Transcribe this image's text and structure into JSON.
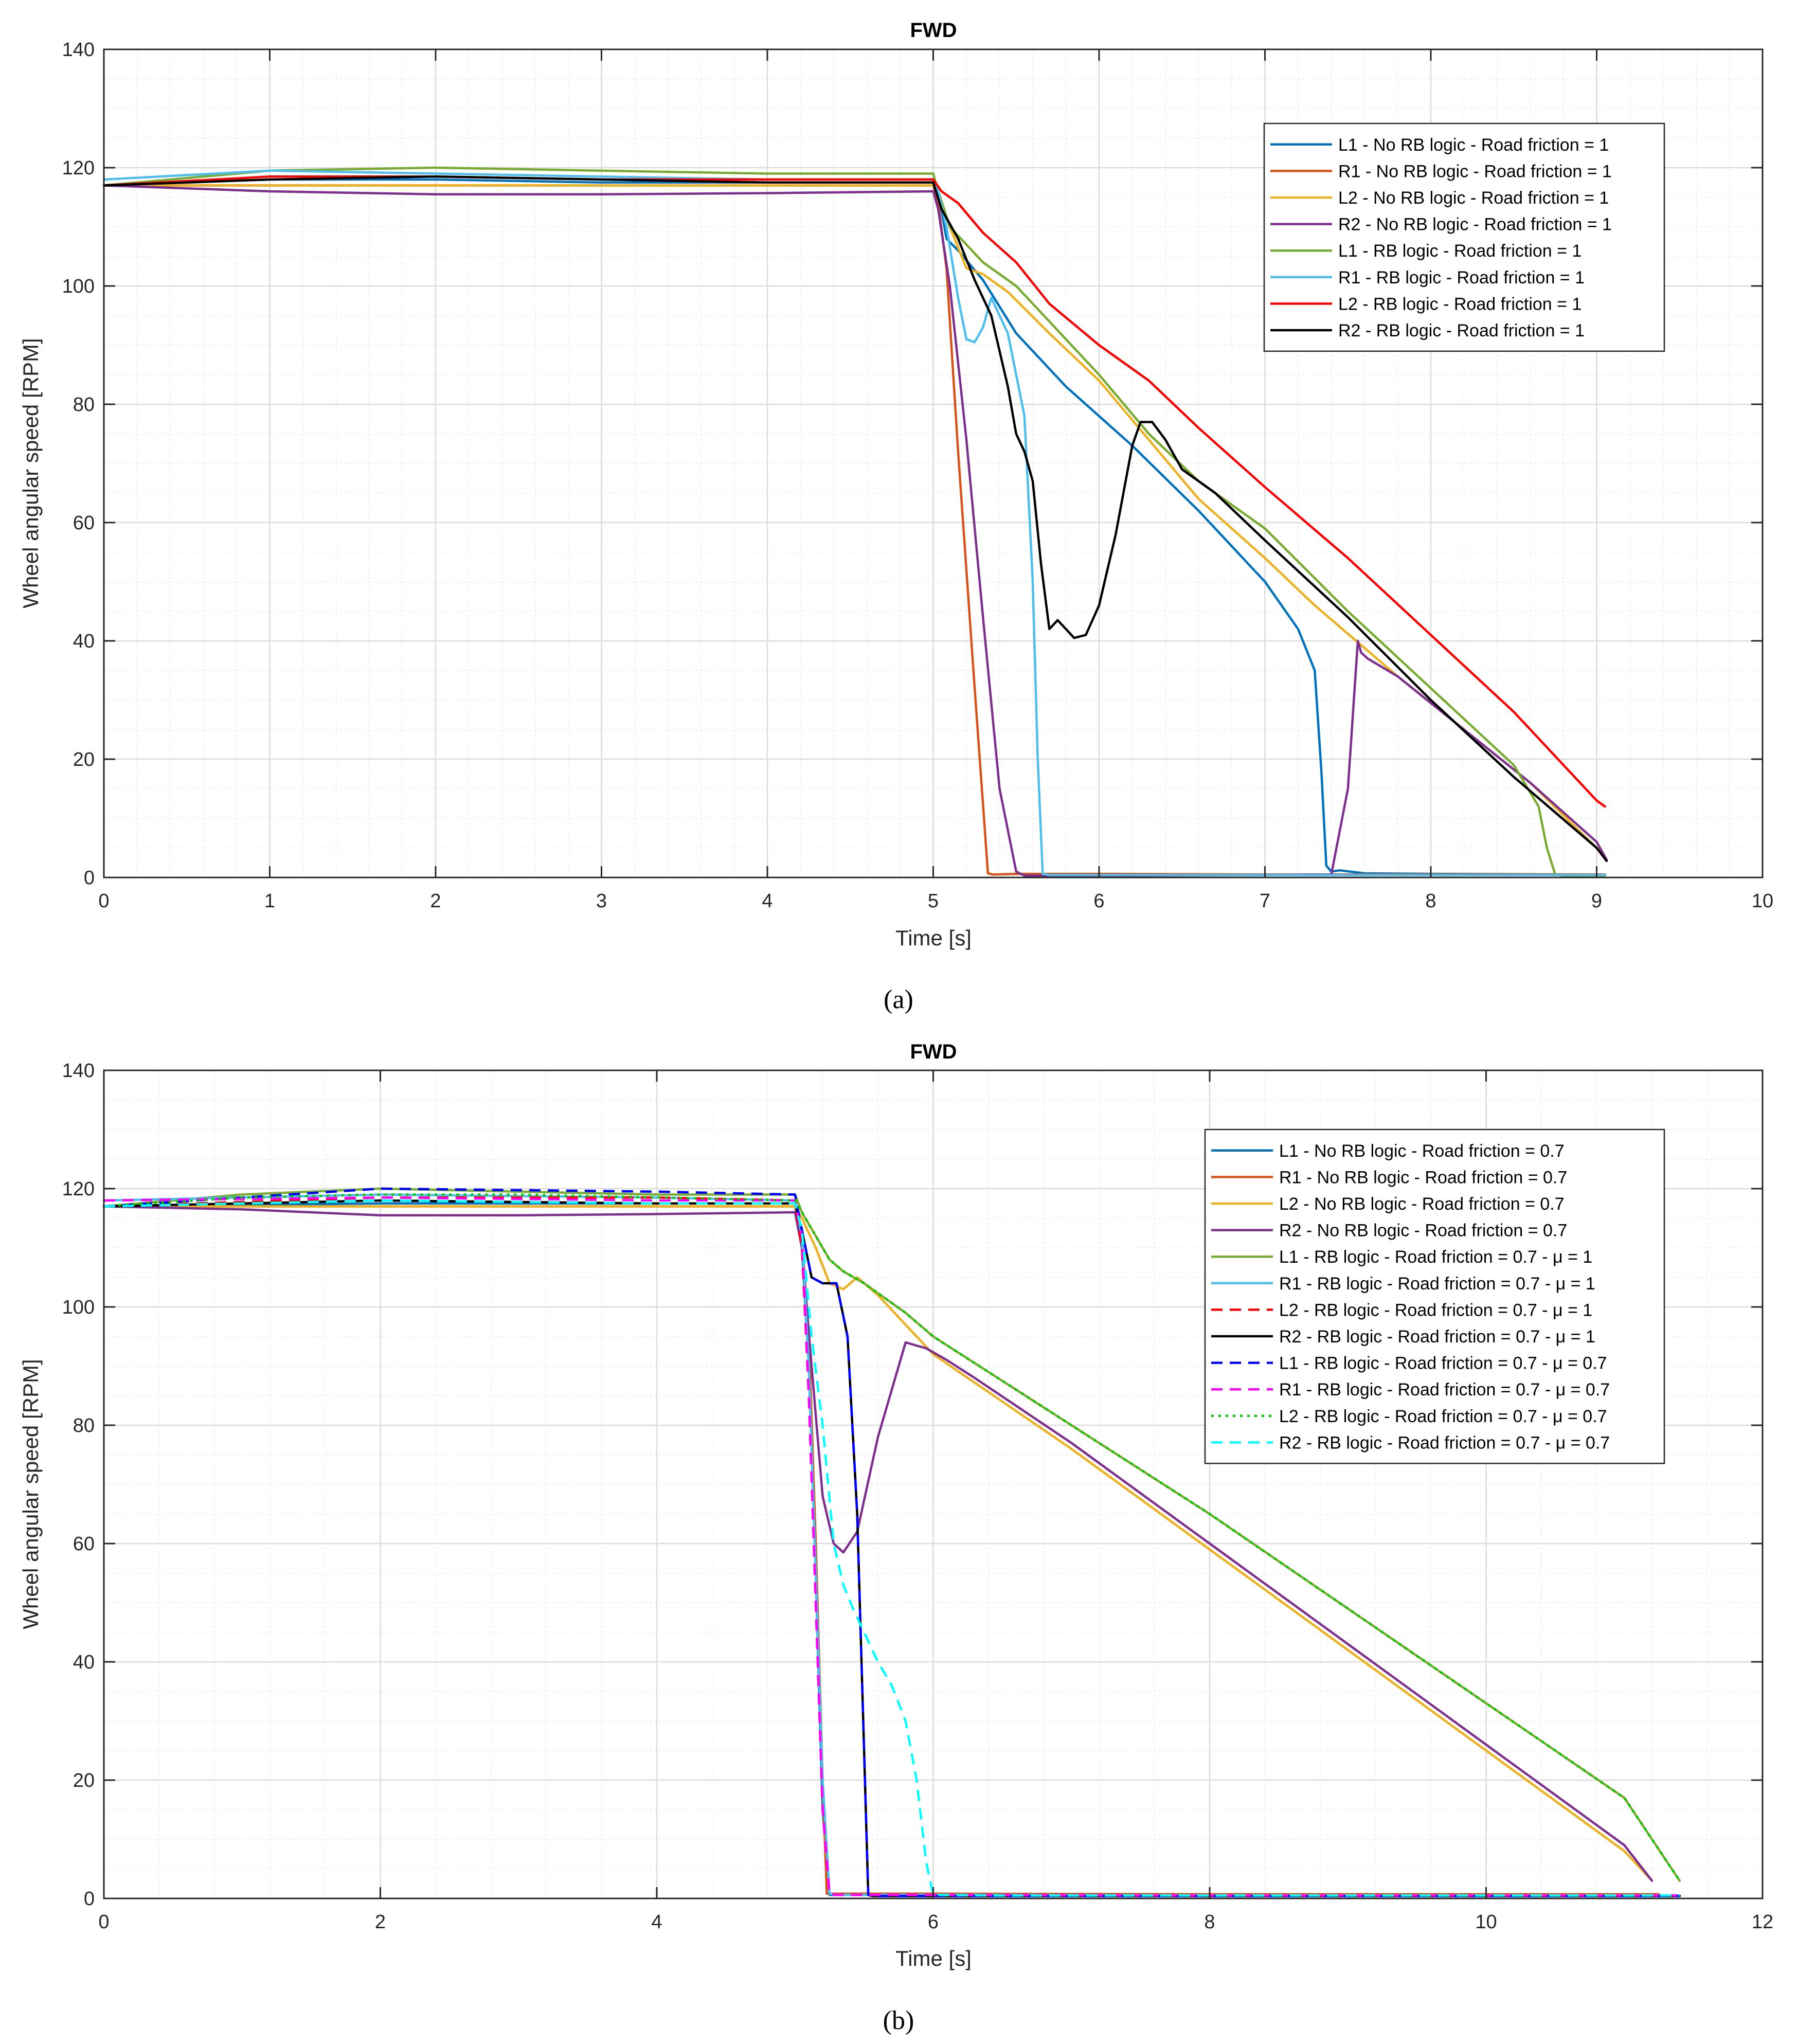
{
  "captions": {
    "a": "(a)",
    "b": "(b)"
  },
  "chart_data": [
    {
      "id": "a",
      "type": "line",
      "title": "FWD",
      "xlabel": "Time [s]",
      "ylabel": "Wheel angular speed [RPM]",
      "xlim": [
        0,
        10
      ],
      "ylim": [
        0,
        140
      ],
      "xticks": [
        0,
        1,
        2,
        3,
        4,
        5,
        6,
        7,
        8,
        9,
        10
      ],
      "yticks": [
        0,
        20,
        40,
        60,
        80,
        100,
        120,
        140
      ],
      "grid": true,
      "legend_location": "top-right",
      "series": [
        {
          "name": "L1 - No RB logic - Road friction = 1",
          "color": "#0072BD",
          "dash": "solid",
          "x": [
            0,
            1,
            2,
            3,
            4,
            5,
            5.03,
            5.08,
            5.15,
            5.3,
            5.5,
            5.8,
            6.2,
            6.6,
            7,
            7.2,
            7.3,
            7.34,
            7.37,
            7.4,
            7.45,
            7.6,
            8,
            9,
            9.05
          ],
          "y": [
            117,
            118,
            118,
            117.5,
            117.5,
            117.5,
            116,
            108,
            106,
            101,
            92,
            83,
            73,
            62,
            50,
            42,
            35,
            18,
            2,
            1,
            1.2,
            0.7,
            0.6,
            0.5,
            0.5
          ]
        },
        {
          "name": "R1 - No RB logic - Road friction = 1",
          "color": "#D95319",
          "dash": "solid",
          "x": [
            0,
            1,
            2,
            3,
            4,
            5,
            5.03,
            5.08,
            5.15,
            5.25,
            5.33,
            5.36,
            5.5,
            6,
            7,
            8,
            9,
            9.05
          ],
          "y": [
            117,
            117,
            117,
            117,
            117,
            117,
            114,
            103,
            72,
            32,
            0.7,
            0.5,
            0.6,
            0.6,
            0.5,
            0.5,
            0.5,
            0.5
          ]
        },
        {
          "name": "L2 - No RB logic - Road friction = 1",
          "color": "#EDB120",
          "dash": "solid",
          "x": [
            0,
            1,
            2,
            3,
            4,
            5,
            5.03,
            5.1,
            5.2,
            5.3,
            5.45,
            5.7,
            6,
            6.3,
            6.6,
            7,
            7.3,
            7.55,
            7.8,
            8.2,
            8.6,
            9,
            9.06
          ],
          "y": [
            117,
            117,
            117,
            117,
            117,
            117,
            116,
            110,
            103,
            102,
            99,
            92,
            84,
            74,
            64,
            54,
            46,
            40,
            34,
            25,
            16,
            5,
            2.8
          ]
        },
        {
          "name": "R2 - No RB logic - Road friction = 1",
          "color": "#7E2F8E",
          "dash": "solid",
          "x": [
            0,
            1,
            2,
            3,
            4,
            5,
            5.03,
            5.1,
            5.2,
            5.3,
            5.4,
            5.5,
            5.55,
            6,
            7,
            7.4,
            7.5,
            7.56,
            7.58,
            7.62,
            7.8,
            8.2,
            8.6,
            9,
            9.06
          ],
          "y": [
            117,
            116,
            115.5,
            115.5,
            115.7,
            116,
            113,
            100,
            74,
            44,
            15,
            1,
            0.3,
            0.3,
            0.4,
            0.5,
            15,
            40,
            38,
            37,
            34,
            25,
            16,
            6,
            3
          ]
        },
        {
          "name": "L1 - RB logic - Road friction = 1",
          "color": "#77AC30",
          "dash": "solid",
          "x": [
            0,
            1,
            2,
            3,
            4,
            5,
            5.03,
            5.1,
            5.2,
            5.3,
            5.5,
            5.7,
            6,
            6.3,
            6.6,
            7,
            7.5,
            8,
            8.5,
            8.65,
            8.7,
            8.75,
            8.8,
            9,
            9.05
          ],
          "y": [
            117,
            119.5,
            120,
            119.5,
            119,
            119,
            116,
            110,
            107,
            104,
            100,
            94,
            85,
            75,
            67,
            59,
            45,
            32,
            19,
            12,
            5,
            0.5,
            0.3,
            0.3,
            0.3
          ]
        },
        {
          "name": "R1 - RB logic - Road friction = 1",
          "color": "#4DBEEE",
          "dash": "solid",
          "x": [
            0,
            1,
            2,
            3,
            4,
            5,
            5.03,
            5.08,
            5.15,
            5.2,
            5.25,
            5.3,
            5.35,
            5.45,
            5.55,
            5.6,
            5.63,
            5.66,
            5.7,
            6,
            7,
            8,
            9,
            9.05
          ],
          "y": [
            118,
            119.5,
            119,
            118.5,
            118,
            118,
            116,
            110,
            98,
            91,
            90.5,
            93,
            98,
            92,
            78,
            50,
            20,
            0.6,
            0.4,
            0.4,
            0.4,
            0.4,
            0.4,
            0.4
          ]
        },
        {
          "name": "L2 - RB logic - Road friction = 1",
          "color": "#FF0000",
          "dash": "solid",
          "x": [
            0,
            1,
            2,
            3,
            4,
            5,
            5.05,
            5.15,
            5.3,
            5.5,
            5.7,
            6,
            6.3,
            6.6,
            7,
            7.5,
            8,
            8.5,
            9,
            9.05
          ],
          "y": [
            117,
            118.5,
            118.5,
            118,
            118,
            118,
            116,
            114,
            109,
            104,
            97,
            90,
            84,
            76,
            66,
            54,
            41,
            28,
            13,
            12
          ]
        },
        {
          "name": "R2 - RB logic - Road friction = 1",
          "color": "#000000",
          "dash": "solid",
          "x": [
            0,
            1,
            2,
            3,
            4,
            5,
            5.05,
            5.15,
            5.25,
            5.35,
            5.45,
            5.5,
            5.55,
            5.6,
            5.65,
            5.7,
            5.75,
            5.8,
            5.85,
            5.92,
            6,
            6.1,
            6.2,
            6.25,
            6.32,
            6.4,
            6.5,
            6.7,
            7,
            7.5,
            8,
            8.5,
            9,
            9.06
          ],
          "y": [
            117,
            118,
            118.5,
            118,
            117.5,
            117.5,
            113,
            108,
            101,
            95,
            83,
            75,
            72,
            67,
            53,
            42,
            43.5,
            42,
            40.5,
            41,
            46,
            58,
            73,
            77,
            77,
            74,
            69,
            65,
            57,
            44,
            30,
            17,
            5,
            2.8
          ]
        }
      ]
    },
    {
      "id": "b",
      "type": "line",
      "title": "FWD",
      "xlabel": "Time [s]",
      "ylabel": "Wheel angular speed [RPM]",
      "xlim": [
        0,
        12
      ],
      "ylim": [
        0,
        140
      ],
      "xticks": [
        0,
        2,
        4,
        6,
        8,
        10,
        12
      ],
      "yticks": [
        0,
        20,
        40,
        60,
        80,
        100,
        120,
        140
      ],
      "grid": true,
      "legend_location": "top-right",
      "series": [
        {
          "name": "L1 - No RB logic - Road friction = 0.7",
          "color": "#0072BD",
          "dash": "solid",
          "x": [
            0,
            2,
            4,
            5,
            5.05,
            5.1,
            5.15,
            5.2,
            5.25,
            5.3,
            6,
            8,
            10,
            11,
            11.4
          ],
          "y": [
            117,
            117.5,
            117.5,
            117.5,
            110,
            90,
            55,
            15,
            0.6,
            0.6,
            0.6,
            0.5,
            0.5,
            0.5,
            0.5
          ]
        },
        {
          "name": "R1 - No RB logic - Road friction = 0.7",
          "color": "#D95319",
          "dash": "solid",
          "x": [
            0,
            2,
            4,
            5,
            5.05,
            5.1,
            5.15,
            5.2,
            5.23,
            6,
            8,
            10,
            11,
            11.25
          ],
          "y": [
            117,
            117,
            117,
            117,
            112,
            95,
            60,
            20,
            0.8,
            0.8,
            0.7,
            0.7,
            0.7,
            0.7
          ]
        },
        {
          "name": "L2 - No RB logic - Road friction = 0.7",
          "color": "#EDB120",
          "dash": "solid",
          "x": [
            0,
            2,
            4,
            5,
            5.05,
            5.15,
            5.25,
            5.35,
            5.45,
            5.6,
            6,
            7,
            8,
            9,
            10,
            11,
            11.2
          ],
          "y": [
            117,
            117,
            117,
            117,
            115,
            110,
            104,
            103,
            105,
            102,
            92,
            76,
            59,
            42,
            25,
            8,
            3
          ]
        },
        {
          "name": "R2 - No RB logic - Road friction = 0.7",
          "color": "#7E2F8E",
          "dash": "solid",
          "x": [
            0,
            1,
            2,
            3,
            4,
            5,
            5.05,
            5.12,
            5.2,
            5.28,
            5.35,
            5.45,
            5.6,
            5.8,
            5.95,
            6.1,
            6.3,
            7,
            8,
            9,
            10,
            11,
            11.2
          ],
          "y": [
            117,
            116.5,
            115.5,
            115.5,
            115.7,
            116,
            110,
            90,
            68,
            60,
            58.5,
            62,
            78,
            94,
            93,
            91,
            88,
            77,
            60,
            43,
            26,
            9,
            3
          ]
        },
        {
          "name": "L1 - RB logic - Road friction = 0.7 - μ = 1",
          "color": "#77AC30",
          "dash": "solid",
          "x": [
            0,
            1,
            2,
            3,
            4,
            5,
            5.05,
            5.15,
            5.25,
            5.35,
            5.5,
            5.8,
            6,
            7,
            8,
            9,
            10,
            11,
            11.4
          ],
          "y": [
            117,
            119,
            120,
            119.5,
            119,
            119,
            116,
            112,
            108,
            106,
            104,
            99,
            95,
            80,
            65,
            49,
            33,
            17,
            3
          ]
        },
        {
          "name": "R1 - RB logic - Road friction = 0.7 - μ = 1",
          "color": "#4DBEEE",
          "dash": "solid",
          "x": [
            0,
            2,
            4,
            5,
            5.05,
            5.1,
            5.15,
            5.2,
            5.25,
            5.3,
            6,
            8,
            10,
            11,
            11.4
          ],
          "y": [
            118,
            119,
            118.5,
            118,
            112,
            90,
            55,
            20,
            0.8,
            0.6,
            0.6,
            0.5,
            0.5,
            0.5,
            0.5
          ]
        },
        {
          "name": "L2 - RB logic - Road friction = 0.7 - μ = 1",
          "color": "#FF0000",
          "dash": "dash",
          "x": [
            0,
            2,
            4,
            5,
            5.05,
            5.1,
            5.15,
            5.2,
            5.25,
            5.3,
            6,
            8,
            10,
            11,
            11.4
          ],
          "y": [
            117,
            118.5,
            118.5,
            118,
            110,
            85,
            50,
            15,
            0.8,
            0.6,
            0.6,
            0.5,
            0.5,
            0.5,
            0.5
          ]
        },
        {
          "name": "R2 - RB logic - Road friction = 0.7 - μ = 1",
          "color": "#000000",
          "dash": "solid",
          "x": [
            0,
            2,
            4,
            5,
            5.05,
            5.12,
            5.2,
            5.3,
            5.38,
            5.45,
            5.5,
            5.53,
            5.56,
            6,
            8,
            10,
            11,
            11.4
          ],
          "y": [
            117,
            118,
            117.5,
            117.5,
            113,
            105,
            104,
            104,
            95,
            65,
            25,
            0.6,
            0.4,
            0.4,
            0.4,
            0.4,
            0.4,
            0.4
          ]
        },
        {
          "name": "L1 - RB logic - Road friction = 0.7 - μ = 0.7",
          "color": "#0000FF",
          "dash": "dash",
          "x": [
            0,
            2,
            4,
            5,
            5.05,
            5.12,
            5.2,
            5.3,
            5.38,
            5.45,
            5.5,
            5.53,
            5.56,
            6,
            8,
            10,
            11,
            11.4
          ],
          "y": [
            117,
            120,
            119.5,
            119,
            113,
            105,
            104,
            104,
            95,
            65,
            25,
            0.6,
            0.4,
            0.4,
            0.4,
            0.4,
            0.4,
            0.4
          ]
        },
        {
          "name": "R1 - RB logic - Road friction = 0.7 - μ = 0.7",
          "color": "#FF00FF",
          "dash": "dash",
          "x": [
            0,
            2,
            4,
            5,
            5.05,
            5.1,
            5.15,
            5.2,
            5.25,
            5.3,
            6,
            8,
            10,
            11,
            11.4
          ],
          "y": [
            118,
            118.5,
            118,
            118,
            112,
            85,
            50,
            15,
            0.8,
            0.6,
            0.6,
            0.5,
            0.5,
            0.5,
            0.5
          ]
        },
        {
          "name": "L2 - RB logic - Road friction = 0.7 - μ = 0.7",
          "color": "#00CC00",
          "dash": "dot",
          "x": [
            0,
            1,
            2,
            3,
            4,
            5,
            5.05,
            5.15,
            5.25,
            5.35,
            5.5,
            5.8,
            6,
            7,
            8,
            9,
            10,
            11,
            11.4
          ],
          "y": [
            117,
            118.5,
            119,
            119,
            118.5,
            118,
            116,
            112,
            108,
            106,
            104,
            99,
            95,
            80,
            65,
            49,
            33,
            17,
            3
          ]
        },
        {
          "name": "R2 - RB logic - Road friction = 0.7 - μ = 0.7",
          "color": "#00FFFF",
          "dash": "dash",
          "x": [
            0,
            2,
            4,
            5,
            5.05,
            5.12,
            5.2,
            5.28,
            5.35,
            5.42,
            5.5,
            5.6,
            5.7,
            5.8,
            5.88,
            5.95,
            6,
            6.5,
            8,
            10,
            11,
            11.4
          ],
          "y": [
            117,
            118,
            117.5,
            117.5,
            113,
            95,
            80,
            60,
            53,
            49,
            45,
            40,
            36,
            30,
            20,
            6,
            0.6,
            0.5,
            0.5,
            0.5,
            0.5,
            0.5
          ]
        }
      ]
    }
  ]
}
